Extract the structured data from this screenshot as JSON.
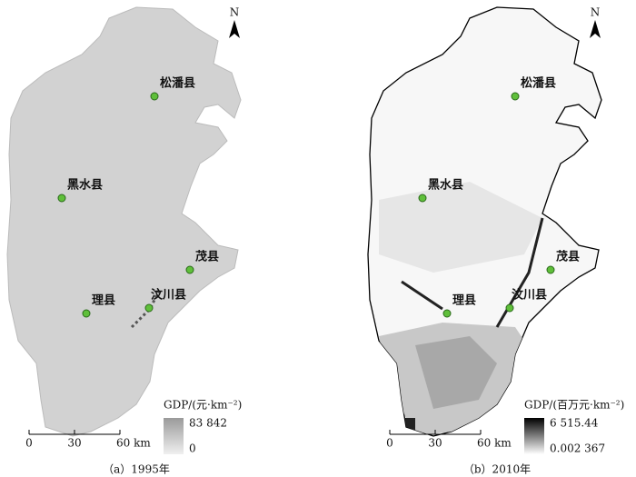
{
  "maps": [
    {
      "north": "N",
      "places": [
        {
          "label": "松潘县"
        },
        {
          "label": "黑水县"
        },
        {
          "label": "茂县"
        },
        {
          "label": "理县"
        },
        {
          "label": "汶川县"
        }
      ],
      "legend": {
        "title": "GDP/(元·km⁻²)",
        "max": "83 842",
        "min": "0"
      },
      "scale": {
        "ticks": [
          "0",
          "30",
          "60 km"
        ]
      },
      "caption": "（a）1995年"
    },
    {
      "north": "N",
      "places": [
        {
          "label": "松潘县"
        },
        {
          "label": "黑水县"
        },
        {
          "label": "茂县"
        },
        {
          "label": "理县"
        },
        {
          "label": "汶川县"
        }
      ],
      "legend": {
        "title": "GDP/(百万元·km⁻²)",
        "max": "6 515.44",
        "min": "0.002 367"
      },
      "scale": {
        "ticks": [
          "0",
          "30",
          "60 km"
        ]
      },
      "caption": "（b）2010年"
    }
  ]
}
